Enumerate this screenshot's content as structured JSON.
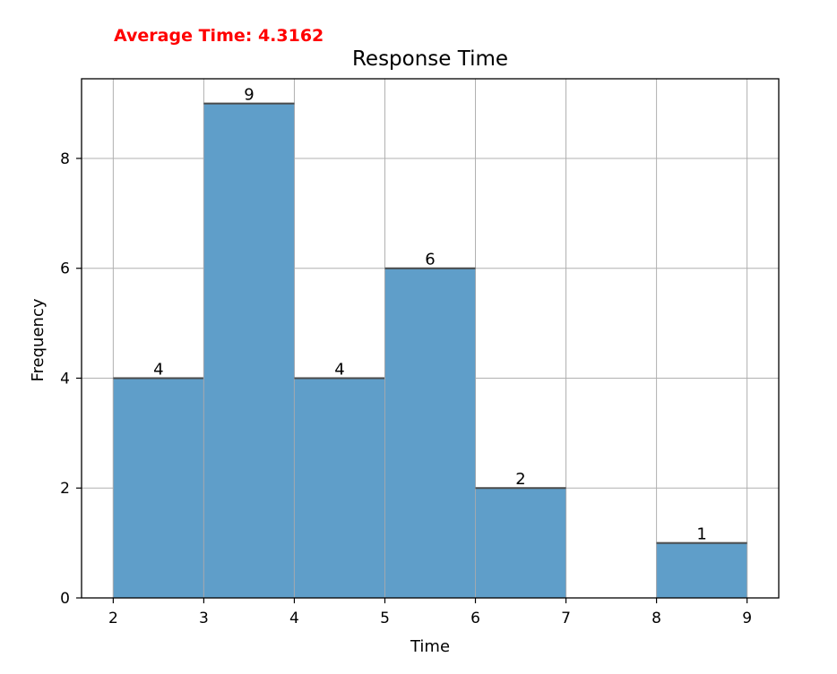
{
  "annotation": {
    "text": "Average Time: 4.3162",
    "color": "#ff0000"
  },
  "chart_data": {
    "type": "bar",
    "title": "Response Time",
    "xlabel": "Time",
    "ylabel": "Frequency",
    "bins": [
      {
        "start": 2,
        "end": 3,
        "value": 4
      },
      {
        "start": 3,
        "end": 4,
        "value": 9
      },
      {
        "start": 4,
        "end": 5,
        "value": 4
      },
      {
        "start": 5,
        "end": 6,
        "value": 6
      },
      {
        "start": 6,
        "end": 7,
        "value": 2
      },
      {
        "start": 7,
        "end": 8,
        "value": 0
      },
      {
        "start": 8,
        "end": 9,
        "value": 1
      }
    ],
    "data_labels": [
      "4",
      "9",
      "4",
      "6",
      "2",
      "",
      "1"
    ],
    "xticks": [
      "2",
      "3",
      "4",
      "5",
      "6",
      "7",
      "8",
      "9"
    ],
    "yticks": [
      "0",
      "2",
      "4",
      "6",
      "8"
    ],
    "xlim": [
      1.65,
      9.35
    ],
    "ylim": [
      0,
      9.45
    ],
    "grid": true,
    "bar_color": "#5f9ec9",
    "bar_edge_color": "#4a4a4a",
    "grid_color": "#b0b0b0"
  }
}
